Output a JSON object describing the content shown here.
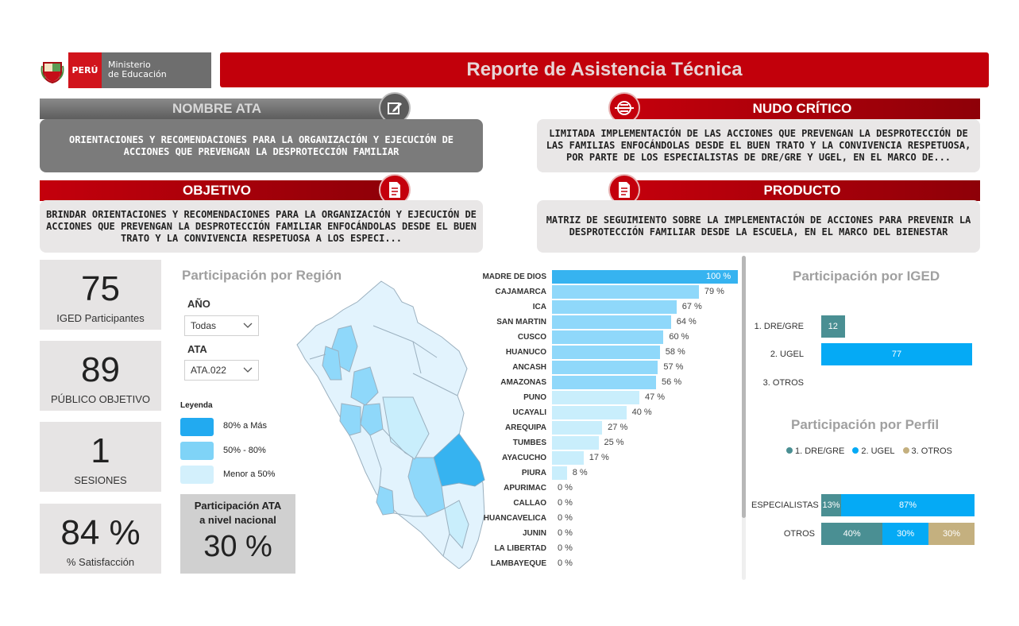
{
  "header": {
    "peru_label": "PERÚ",
    "ministry_line1": "Ministerio",
    "ministry_line2": "de Educación",
    "title": "Reporte de Asistencia Técnica"
  },
  "sections": {
    "nombre_ata": {
      "title": "NOMBRE ATA",
      "text": "ORIENTACIONES Y RECOMENDACIONES PARA LA ORGANIZACIÓN Y EJECUCIÓN DE ACCIONES QUE PREVENGAN LA DESPROTECCIÓN FAMILIAR"
    },
    "nudo_critico": {
      "title": "NUDO CRÍTICO",
      "text": "LIMITADA IMPLEMENTACIÓN DE LAS ACCIONES QUE PREVENGAN LA DESPROTECCIÓN DE LAS FAMILIAS ENFOCÁNDOLAS DESDE EL BUEN TRATO Y LA CONVIVENCIA RESPETUOSA, POR PARTE DE LOS ESPECIALISTAS DE DRE/GRE Y UGEL, EN EL MARCO DE..."
    },
    "objetivo": {
      "title": "OBJETIVO",
      "text": "BRINDAR ORIENTACIONES Y RECOMENDACIONES PARA LA ORGANIZACIÓN Y EJECUCIÓN DE ACCIONES QUE PREVENGAN LA DESPROTECCIÓN FAMILIAR ENFOCÁNDOLAS DESDE EL BUEN TRATO Y LA CONVIVENCIA RESPETUOSA A LOS ESPECI..."
    },
    "producto": {
      "title": "PRODUCTO",
      "text": "MATRIZ DE SEGUIMIENTO SOBRE LA IMPLEMENTACIÓN DE ACCIONES PARA PREVENIR LA DESPROTECCIÓN FAMILIAR DESDE LA ESCUELA, EN EL MARCO DEL BIENESTAR"
    }
  },
  "kpis": [
    {
      "value": "75",
      "label": "IGED Participantes"
    },
    {
      "value": "89",
      "label": "PÚBLICO OBJETIVO"
    },
    {
      "value": "1",
      "label": "SESIONES"
    },
    {
      "value": "84 %",
      "label": "% Satisfacción"
    }
  ],
  "region": {
    "title": "Participación por Región",
    "filters": {
      "year_label": "AÑO",
      "year_value": "Todas",
      "ata_label": "ATA",
      "ata_value": "ATA.022"
    },
    "legend": {
      "title": "Leyenda",
      "items": [
        {
          "label": "80% a Más",
          "color": "#22aaf0"
        },
        {
          "label": "50% - 80%",
          "color": "#7fd3f7"
        },
        {
          "label": "Menor a 50%",
          "color": "#d3f0fc"
        }
      ]
    },
    "national": {
      "title_line1": "Participación ATA",
      "title_line2": "a nivel nacional",
      "value": "30 %"
    }
  },
  "chart_data": [
    {
      "type": "bar",
      "orientation": "horizontal",
      "categories": [
        "MADRE DE DIOS",
        "CAJAMARCA",
        "ICA",
        "SAN MARTIN",
        "CUSCO",
        "HUANUCO",
        "ANCASH",
        "AMAZONAS",
        "PUNO",
        "UCAYALI",
        "AREQUIPA",
        "TUMBES",
        "AYACUCHO",
        "PIURA",
        "APURIMAC",
        "CALLAO",
        "HUANCAVELICA",
        "JUNIN",
        "LA LIBERTAD",
        "LAMBAYEQUE"
      ],
      "values": [
        100,
        79,
        67,
        64,
        60,
        58,
        57,
        56,
        47,
        40,
        27,
        25,
        17,
        8,
        0,
        0,
        0,
        0,
        0,
        0
      ],
      "labels": [
        "100 %",
        "79 %",
        "67 %",
        "64 %",
        "60 %",
        "58 %",
        "57 %",
        "56 %",
        "47 %",
        "40 %",
        "27 %",
        "25 %",
        "17 %",
        "8 %",
        "0 %",
        "0 %",
        "0 %",
        "0 %",
        "0 %",
        "0 %"
      ],
      "xlim": [
        0,
        100
      ],
      "colors": {
        "high": "#36b3f0",
        "mid": "#8fd8fa",
        "low": "#c9eefc"
      }
    },
    {
      "type": "bar",
      "orientation": "horizontal",
      "title": "Participación por IGED",
      "categories": [
        "1. DRE/GRE",
        "2. UGEL",
        "3. OTROS"
      ],
      "values": [
        12,
        77,
        0
      ],
      "labels": [
        "12",
        "77",
        ""
      ],
      "xlim": [
        0,
        77
      ],
      "colors": [
        "#4a8f93",
        "#05aaf5",
        "#c4b07f"
      ]
    },
    {
      "type": "bar",
      "stacked": true,
      "orientation": "horizontal",
      "title": "Participación por Perfil",
      "categories": [
        "ESPECIALISTAS",
        "OTROS"
      ],
      "series": [
        {
          "name": "1. DRE/GRE",
          "values": [
            13,
            40
          ],
          "labels": [
            "13%",
            "40%"
          ],
          "color": "#4a8f93"
        },
        {
          "name": "2. UGEL",
          "values": [
            87,
            30
          ],
          "labels": [
            "87%",
            "30%"
          ],
          "color": "#05aaf5"
        },
        {
          "name": "3. OTROS",
          "values": [
            0,
            30
          ],
          "labels": [
            "",
            "30%"
          ],
          "color": "#c4b07f"
        }
      ],
      "xlim": [
        0,
        100
      ],
      "legend": "top"
    }
  ]
}
